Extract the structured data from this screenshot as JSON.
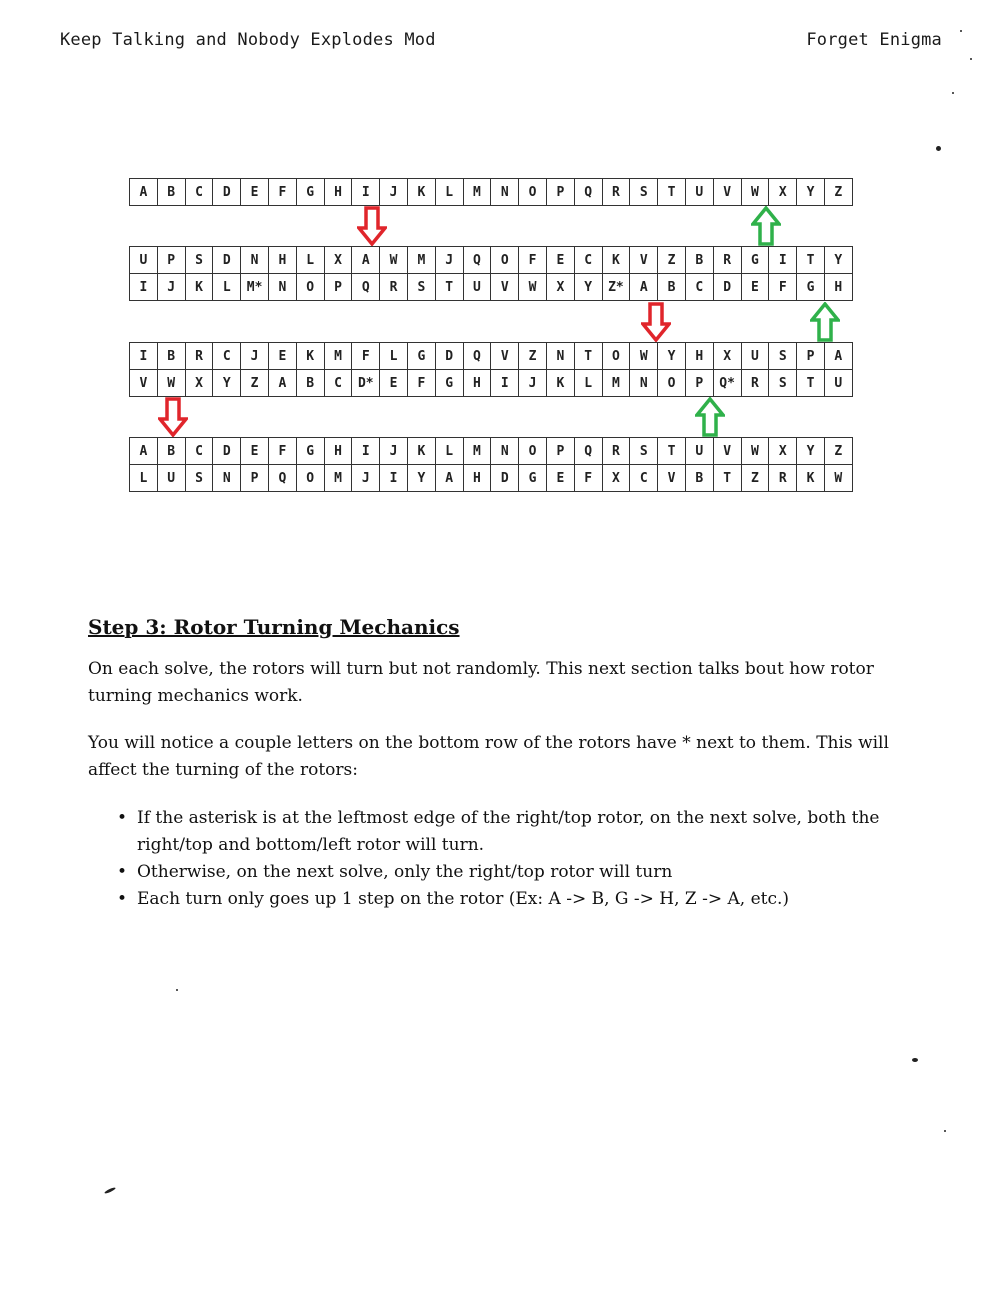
{
  "header": {
    "left": "Keep Talking and Nobody Explodes Mod",
    "right": "Forget Enigma"
  },
  "rotors": [
    {
      "rows": [
        [
          "A",
          "B",
          "C",
          "D",
          "E",
          "F",
          "G",
          "H",
          "I",
          "J",
          "K",
          "L",
          "M",
          "N",
          "O",
          "P",
          "Q",
          "R",
          "S",
          "T",
          "U",
          "V",
          "W",
          "X",
          "Y",
          "Z"
        ]
      ]
    },
    {
      "rows": [
        [
          "U",
          "P",
          "S",
          "D",
          "N",
          "H",
          "L",
          "X",
          "A",
          "W",
          "M",
          "J",
          "Q",
          "O",
          "F",
          "E",
          "C",
          "K",
          "V",
          "Z",
          "B",
          "R",
          "G",
          "I",
          "T",
          "Y"
        ],
        [
          "I",
          "J",
          "K",
          "L",
          "M*",
          "N",
          "O",
          "P",
          "Q",
          "R",
          "S",
          "T",
          "U",
          "V",
          "W",
          "X",
          "Y",
          "Z*",
          "A",
          "B",
          "C",
          "D",
          "E",
          "F",
          "G",
          "H"
        ]
      ]
    },
    {
      "rows": [
        [
          "I",
          "B",
          "R",
          "C",
          "J",
          "E",
          "K",
          "M",
          "F",
          "L",
          "G",
          "D",
          "Q",
          "V",
          "Z",
          "N",
          "T",
          "O",
          "W",
          "Y",
          "H",
          "X",
          "U",
          "S",
          "P",
          "A"
        ],
        [
          "V",
          "W",
          "X",
          "Y",
          "Z",
          "A",
          "B",
          "C",
          "D*",
          "E",
          "F",
          "G",
          "H",
          "I",
          "J",
          "K",
          "L",
          "M",
          "N",
          "O",
          "P",
          "Q*",
          "R",
          "S",
          "T",
          "U"
        ]
      ]
    },
    {
      "rows": [
        [
          "A",
          "B",
          "C",
          "D",
          "E",
          "F",
          "G",
          "H",
          "I",
          "J",
          "K",
          "L",
          "M",
          "N",
          "O",
          "P",
          "Q",
          "R",
          "S",
          "T",
          "U",
          "V",
          "W",
          "X",
          "Y",
          "Z"
        ],
        [
          "L",
          "U",
          "S",
          "N",
          "P",
          "Q",
          "O",
          "M",
          "J",
          "I",
          "Y",
          "A",
          "H",
          "D",
          "G",
          "E",
          "F",
          "X",
          "C",
          "V",
          "B",
          "T",
          "Z",
          "R",
          "K",
          "W"
        ]
      ]
    }
  ],
  "arrow_colors": {
    "down": "#e0252b",
    "up": "#2fb14a"
  },
  "section": {
    "title": "Step 3: Rotor Turning Mechanics",
    "para1": "On each solve, the rotors will turn but not randomly. This next section talks bout how rotor turning mechanics work.",
    "para2": "You will notice a couple letters on the bottom row of the rotors have * next to them. This will affect the turning of the rotors:",
    "bullets": [
      "If the asterisk is at the leftmost edge of the right/top rotor, on the next solve, both the right/top and bottom/left rotor will turn.",
      "Otherwise, on the next solve, only the right/top rotor will turn",
      "Each turn only goes up 1 step on the rotor (Ex: A -> B, G -> H, Z -> A, etc.)"
    ]
  }
}
